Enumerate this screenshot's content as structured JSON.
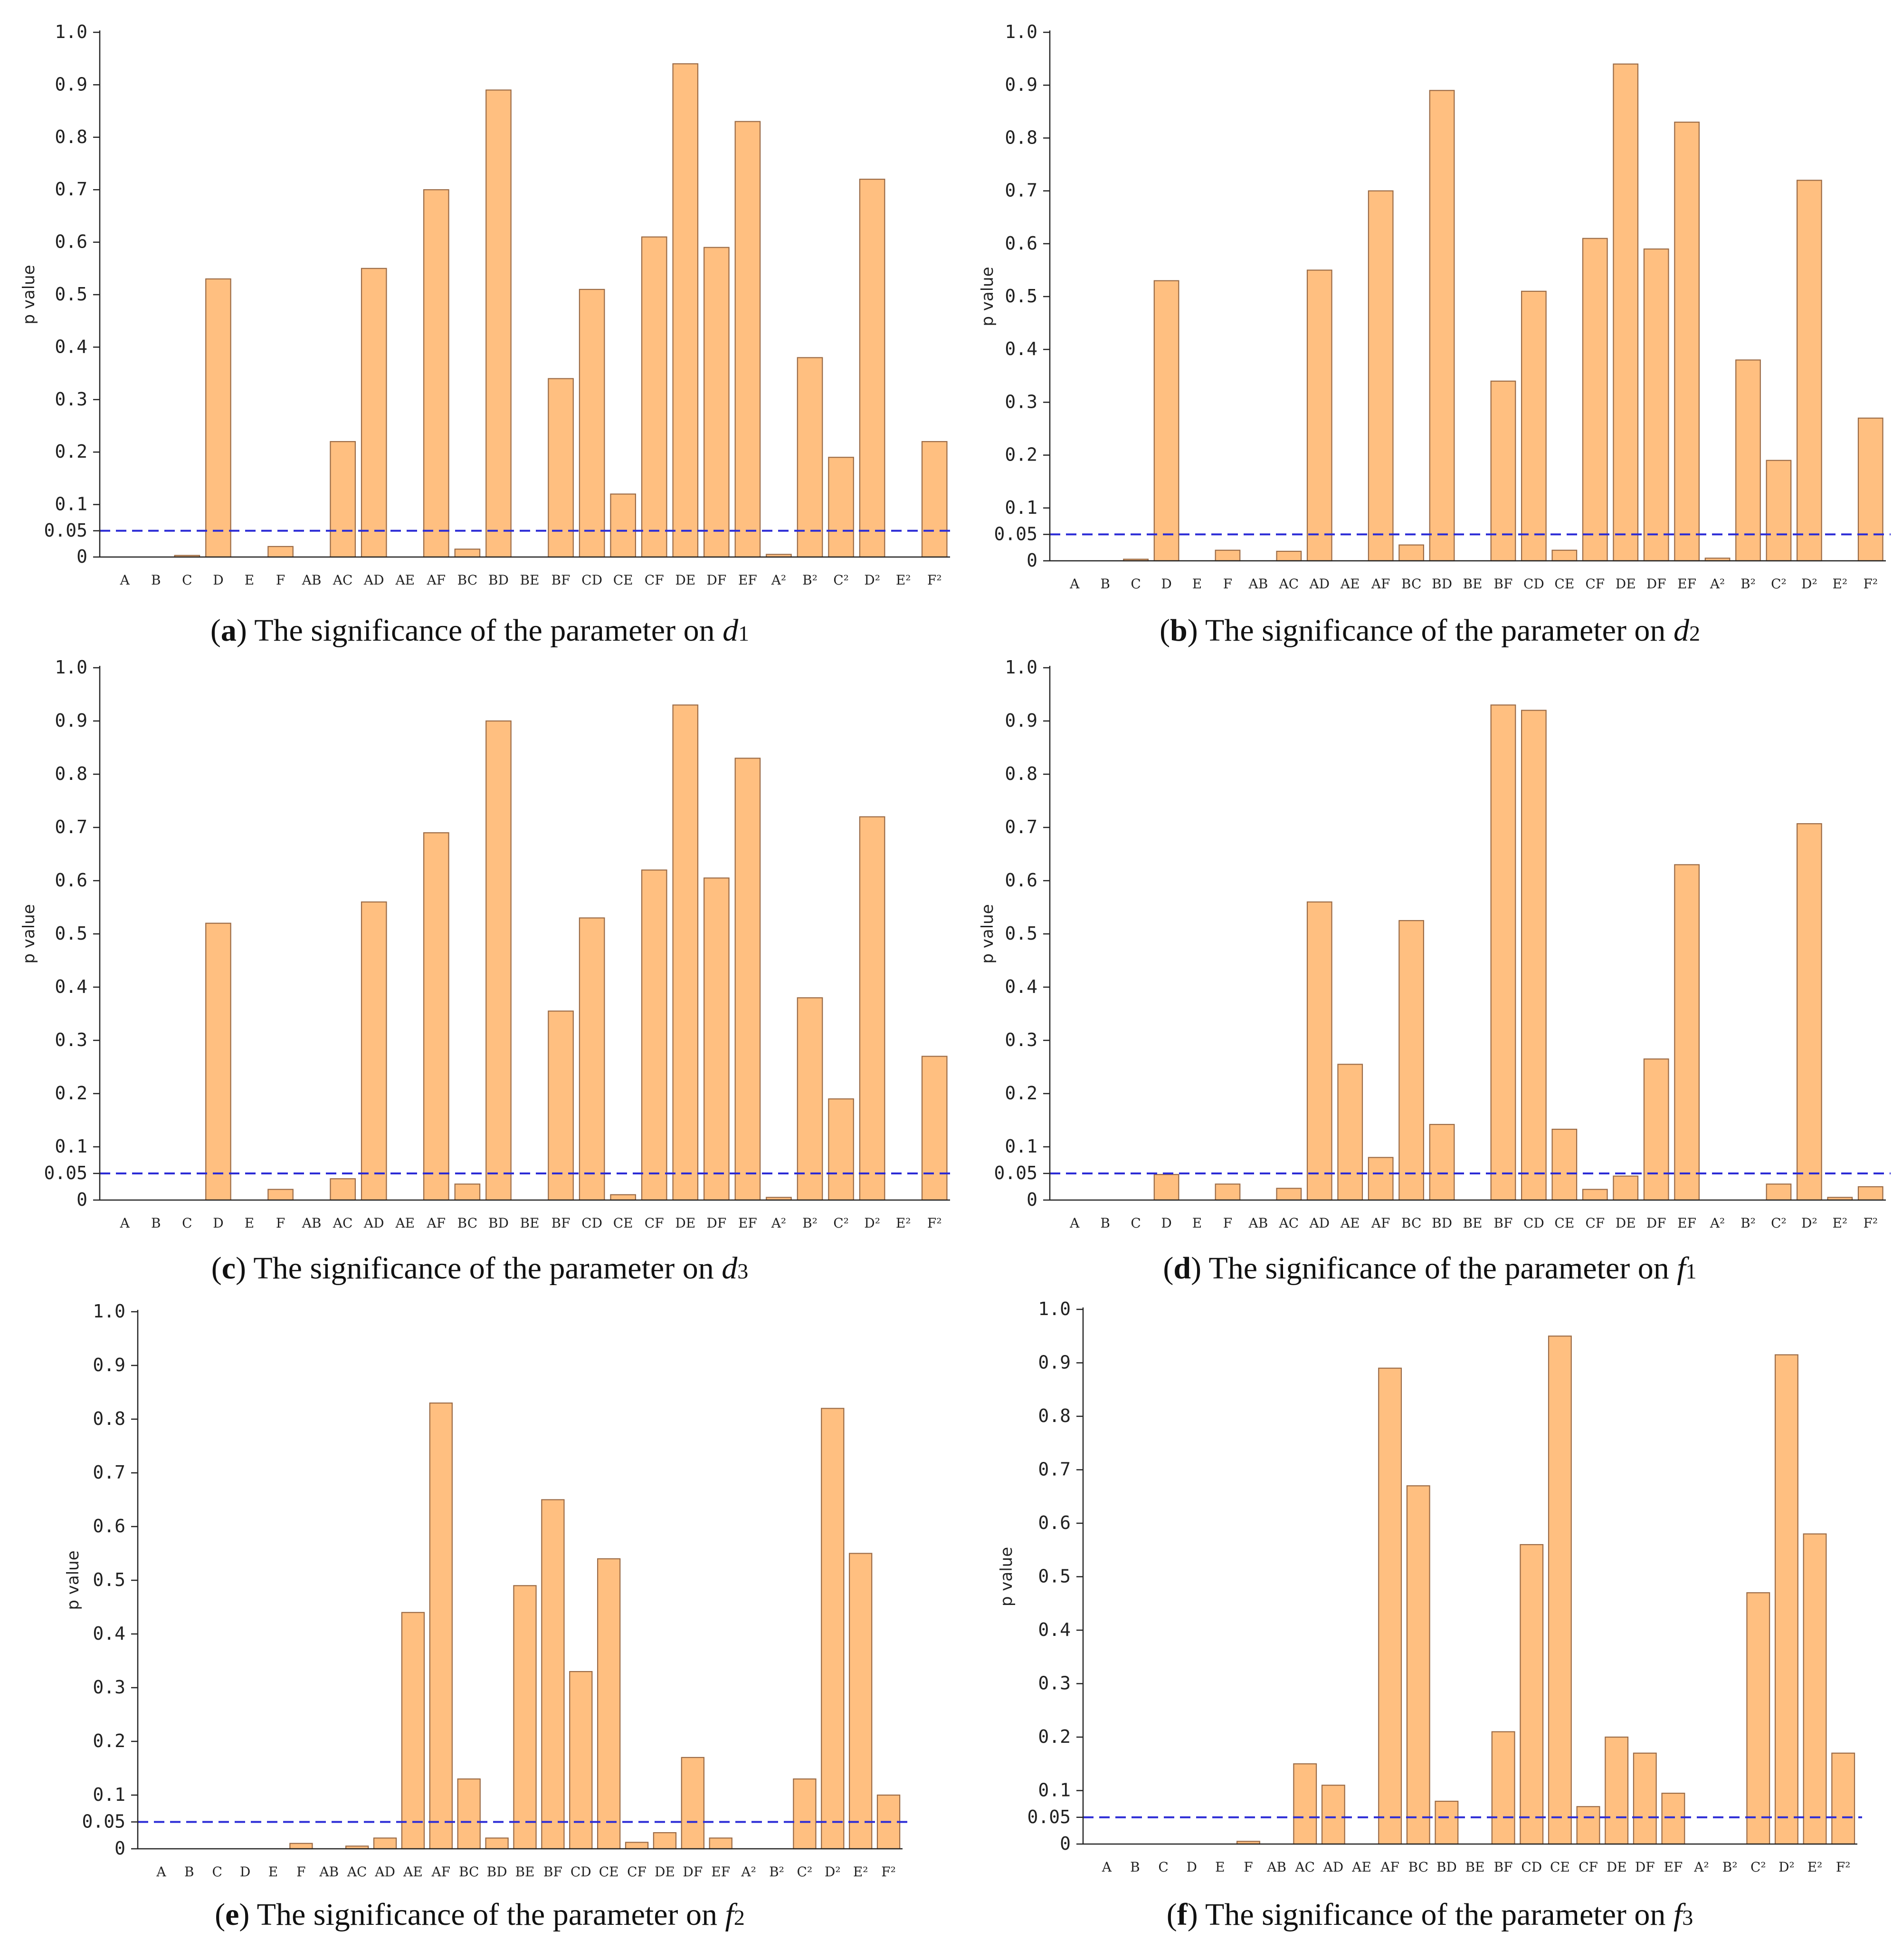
{
  "chart_data": [
    {
      "id": "a",
      "type": "bar",
      "ylabel": "p value",
      "ylim": [
        0,
        1.0
      ],
      "yticks": [
        "1.0",
        "0.9",
        "0.8",
        "0.7",
        "0.6",
        "0.5",
        "0.4",
        "0.3",
        "0.2",
        "0.1",
        "0.05",
        "0"
      ],
      "threshold": 0.05,
      "threshold_color": "#2b2bd6",
      "bar_color": "#ffbf80",
      "categories": [
        "A",
        "B",
        "C",
        "D",
        "E",
        "F",
        "AB",
        "AC",
        "AD",
        "AE",
        "AF",
        "BC",
        "BD",
        "BE",
        "BF",
        "CD",
        "CE",
        "CF",
        "DE",
        "DF",
        "EF",
        "A²",
        "B²",
        "C²",
        "D²",
        "E²",
        "F²"
      ],
      "values": [
        0,
        0,
        0.003,
        0.53,
        0,
        0.02,
        0,
        0.22,
        0.55,
        0,
        0.7,
        0.015,
        0.89,
        0,
        0.34,
        0.51,
        0.12,
        0.61,
        0.94,
        0.59,
        0.83,
        0.005,
        0.38,
        0.19,
        0.72,
        0,
        0.22
      ],
      "caption": {
        "label": "a",
        "text": "The significance of the parameter on",
        "var": "d",
        "sub": "1"
      }
    },
    {
      "id": "b",
      "type": "bar",
      "ylabel": "p value",
      "ylim": [
        0,
        1.0
      ],
      "yticks": [
        "1.0",
        "0.9",
        "0.8",
        "0.7",
        "0.6",
        "0.5",
        "0.4",
        "0.3",
        "0.2",
        "0.1",
        "0.05",
        "0"
      ],
      "threshold": 0.05,
      "threshold_color": "#2b2bd6",
      "bar_color": "#ffbf80",
      "categories": [
        "A",
        "B",
        "C",
        "D",
        "E",
        "F",
        "AB",
        "AC",
        "AD",
        "AE",
        "AF",
        "BC",
        "BD",
        "BE",
        "BF",
        "CD",
        "CE",
        "CF",
        "DE",
        "DF",
        "EF",
        "A²",
        "B²",
        "C²",
        "D²",
        "E²",
        "F²"
      ],
      "values": [
        0,
        0,
        0.003,
        0.53,
        0,
        0.02,
        0,
        0.018,
        0.55,
        0,
        0.7,
        0.03,
        0.89,
        0,
        0.34,
        0.51,
        0.02,
        0.61,
        0.94,
        0.59,
        0.83,
        0.005,
        0.38,
        0.19,
        0.72,
        0,
        0.27
      ],
      "caption": {
        "label": "b",
        "text": "The significance of the parameter on",
        "var": "d",
        "sub": "2"
      }
    },
    {
      "id": "c",
      "type": "bar",
      "ylabel": "p value",
      "ylim": [
        0,
        1.0
      ],
      "yticks": [
        "1.0",
        "0.9",
        "0.8",
        "0.7",
        "0.6",
        "0.5",
        "0.4",
        "0.3",
        "0.2",
        "0.1",
        "0.05",
        "0"
      ],
      "threshold": 0.05,
      "threshold_color": "#2b2bd6",
      "bar_color": "#ffbf80",
      "categories": [
        "A",
        "B",
        "C",
        "D",
        "E",
        "F",
        "AB",
        "AC",
        "AD",
        "AE",
        "AF",
        "BC",
        "BD",
        "BE",
        "BF",
        "CD",
        "CE",
        "CF",
        "DE",
        "DF",
        "EF",
        "A²",
        "B²",
        "C²",
        "D²",
        "E²",
        "F²"
      ],
      "values": [
        0,
        0,
        0,
        0.52,
        0,
        0.02,
        0,
        0.04,
        0.56,
        0,
        0.69,
        0.03,
        0.9,
        0,
        0.355,
        0.53,
        0.01,
        0.62,
        0.93,
        0.605,
        0.83,
        0.005,
        0.38,
        0.19,
        0.72,
        0,
        0.27
      ],
      "caption": {
        "label": "c",
        "text": "The significance of the parameter on",
        "var": "d",
        "sub": "3"
      }
    },
    {
      "id": "d",
      "type": "bar",
      "ylabel": "p value",
      "ylim": [
        0,
        1.0
      ],
      "yticks": [
        "1.0",
        "0.9",
        "0.8",
        "0.7",
        "0.6",
        "0.5",
        "0.4",
        "0.3",
        "0.2",
        "0.1",
        "0.05",
        "0"
      ],
      "threshold": 0.05,
      "threshold_color": "#2b2bd6",
      "bar_color": "#ffbf80",
      "categories": [
        "A",
        "B",
        "C",
        "D",
        "E",
        "F",
        "AB",
        "AC",
        "AD",
        "AE",
        "AF",
        "BC",
        "BD",
        "BE",
        "BF",
        "CD",
        "CE",
        "CF",
        "DE",
        "DF",
        "EF",
        "A²",
        "B²",
        "C²",
        "D²",
        "E²",
        "F²"
      ],
      "values": [
        0,
        0,
        0,
        0.048,
        0,
        0.03,
        0,
        0.022,
        0.56,
        0.255,
        0.08,
        0.525,
        0.142,
        0,
        0.93,
        0.92,
        0.133,
        0.02,
        0.045,
        0.265,
        0.63,
        0,
        0,
        0.03,
        0.707,
        0.005,
        0.025
      ],
      "caption": {
        "label": "d",
        "text": "The significance of the parameter on",
        "var": "f",
        "sub": "1"
      }
    },
    {
      "id": "e",
      "type": "bar",
      "ylabel": "p value",
      "ylim": [
        0,
        1.0
      ],
      "yticks": [
        "1.0",
        "0.9",
        "0.8",
        "0.7",
        "0.6",
        "0.5",
        "0.4",
        "0.3",
        "0.2",
        "0.1",
        "0.05",
        "0"
      ],
      "threshold": 0.05,
      "threshold_color": "#2b2bd6",
      "bar_color": "#ffbf80",
      "categories": [
        "A",
        "B",
        "C",
        "D",
        "E",
        "F",
        "AB",
        "AC",
        "AD",
        "AE",
        "AF",
        "BC",
        "BD",
        "BE",
        "BF",
        "CD",
        "CE",
        "CF",
        "DE",
        "DF",
        "EF",
        "A²",
        "B²",
        "C²",
        "D²",
        "E²",
        "F²"
      ],
      "values": [
        0,
        0,
        0,
        0,
        0,
        0.01,
        0,
        0.005,
        0.02,
        0.44,
        0.83,
        0.13,
        0.02,
        0.49,
        0.65,
        0.33,
        0.54,
        0.012,
        0.03,
        0.17,
        0.02,
        0,
        0,
        0.13,
        0.82,
        0.55,
        0.1
      ],
      "caption": {
        "label": "e",
        "text": "The significance of the parameter on",
        "var": "f",
        "sub": "2"
      }
    },
    {
      "id": "f",
      "type": "bar",
      "ylabel": "p value",
      "ylim": [
        0,
        1.0
      ],
      "yticks": [
        "1.0",
        "0.9",
        "0.8",
        "0.7",
        "0.6",
        "0.5",
        "0.4",
        "0.3",
        "0.2",
        "0.1",
        "0.05",
        "0"
      ],
      "threshold": 0.05,
      "threshold_color": "#2b2bd6",
      "bar_color": "#ffbf80",
      "categories": [
        "A",
        "B",
        "C",
        "D",
        "E",
        "F",
        "AB",
        "AC",
        "AD",
        "AE",
        "AF",
        "BC",
        "BD",
        "BE",
        "BF",
        "CD",
        "CE",
        "CF",
        "DE",
        "DF",
        "EF",
        "A²",
        "B²",
        "C²",
        "D²",
        "E²",
        "F²"
      ],
      "values": [
        0,
        0,
        0,
        0,
        0,
        0.005,
        0,
        0.15,
        0.11,
        0,
        0.89,
        0.67,
        0.08,
        0,
        0.21,
        0.56,
        0.95,
        0.07,
        0.2,
        0.17,
        0.095,
        0,
        0,
        0.47,
        0.915,
        0.58,
        0.17
      ],
      "caption": {
        "label": "f",
        "text": "The significance of the parameter on",
        "var": "f",
        "sub": "3"
      }
    }
  ]
}
